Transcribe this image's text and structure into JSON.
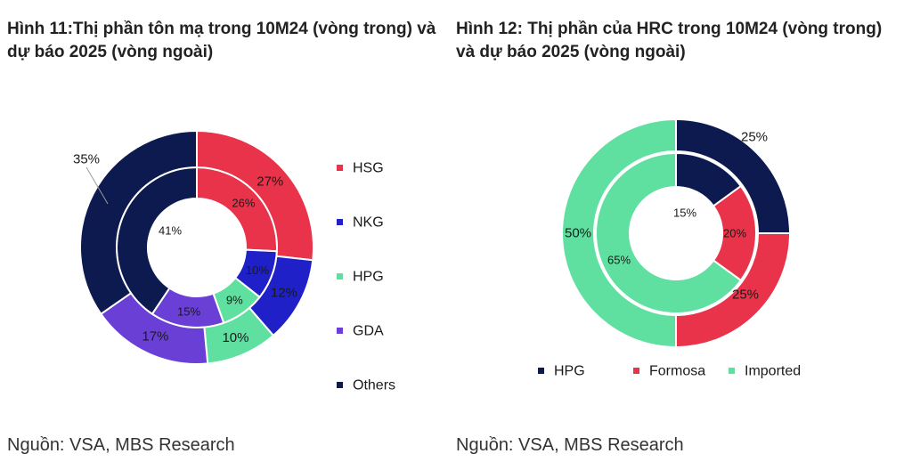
{
  "chart_data": [
    {
      "type": "donut",
      "title": "Hình 11:Thị phần tôn mạ trong 10M24 (vòng trong) và dự báo 2025 (vòng ngoài)",
      "source": "Nguồn: VSA, MBS Research",
      "legend_position": "right",
      "categories": [
        "HSG",
        "NKG",
        "HPG",
        "GDA",
        "Others"
      ],
      "colors": [
        "#e8334a",
        "#1f20c8",
        "#5fe0a0",
        "#6a3fd6",
        "#0d1a4f"
      ],
      "series": [
        {
          "name": "10M24 (vòng trong)",
          "values": [
            26,
            10,
            9,
            15,
            41
          ],
          "labels": [
            "26%",
            "10%",
            "9%",
            "15%",
            "41%"
          ]
        },
        {
          "name": "2025 (vòng ngoài)",
          "values": [
            27,
            12,
            10,
            17,
            35
          ],
          "labels": [
            "27%",
            "12%",
            "10%",
            "17%",
            "35%"
          ]
        }
      ]
    },
    {
      "type": "donut",
      "title": "Hình 12: Thị phần của HRC trong 10M24 (vòng trong) và dự báo 2025 (vòng ngoài)",
      "source": "Nguồn: VSA, MBS Research",
      "legend_position": "bottom",
      "categories": [
        "HPG",
        "Formosa",
        "Imported"
      ],
      "colors": [
        "#0d1a4f",
        "#e8334a",
        "#5fe0a0"
      ],
      "series": [
        {
          "name": "10M24 (vòng trong)",
          "values": [
            15,
            20,
            65
          ],
          "labels": [
            "15%",
            "20%",
            "65%"
          ]
        },
        {
          "name": "2025 (vòng ngoài)",
          "values": [
            25,
            25,
            50
          ],
          "labels": [
            "25%",
            "25%",
            "50%"
          ]
        }
      ]
    }
  ]
}
